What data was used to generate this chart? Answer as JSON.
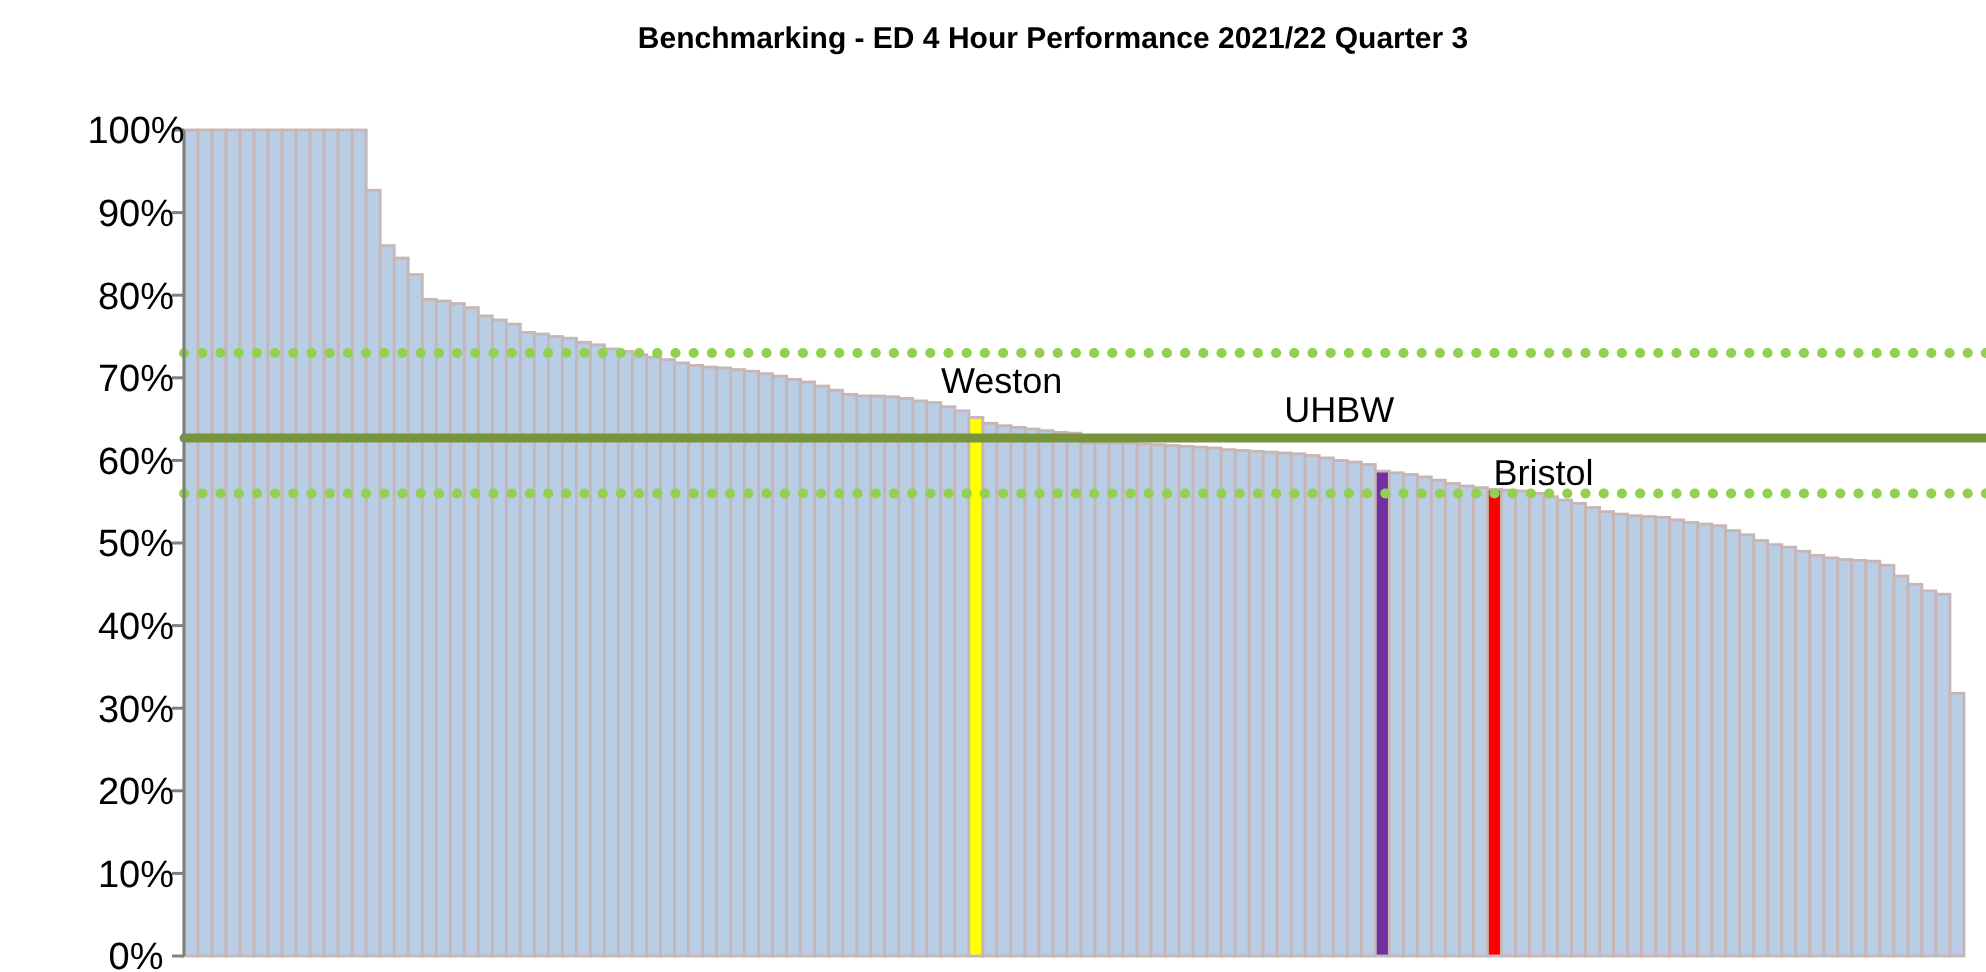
{
  "chart_data": {
    "type": "bar",
    "title": "Benchmarking - ED 4 Hour Performance 2021/22 Quarter 3",
    "categories": [
      null,
      null,
      null,
      null,
      null,
      null,
      null,
      null,
      null,
      null,
      null,
      null,
      null,
      null,
      null,
      null,
      null,
      null,
      null,
      null,
      null,
      null,
      null,
      null,
      null,
      null,
      null,
      null,
      null,
      null,
      null,
      null,
      null,
      null,
      null,
      null,
      null,
      null,
      null,
      null,
      null,
      null,
      null,
      null,
      null,
      null,
      null,
      null,
      null,
      null,
      null,
      null,
      null,
      null,
      null,
      null,
      null,
      null,
      null,
      null,
      null,
      null,
      null,
      null,
      null,
      null,
      null,
      null,
      null,
      null,
      null,
      null,
      null,
      null,
      null,
      null,
      null,
      null,
      null,
      null,
      null,
      null,
      null,
      null,
      null,
      null,
      null,
      null,
      null,
      null,
      null,
      null,
      null,
      null,
      null,
      null,
      null,
      null,
      null,
      null,
      null,
      null,
      null,
      null,
      null,
      null,
      null,
      null,
      null,
      null,
      null,
      null,
      null,
      null,
      null,
      null,
      null,
      null,
      null,
      null,
      null,
      null,
      null,
      null,
      null,
      null,
      null
    ],
    "values": [
      100,
      100,
      100,
      100,
      100,
      100,
      100,
      100,
      100,
      100,
      100,
      100,
      100,
      92.7,
      86,
      84.5,
      82.5,
      79.5,
      79.3,
      79,
      78.5,
      77.5,
      77,
      76.5,
      75.5,
      75.3,
      75,
      74.8,
      74.3,
      74,
      73.5,
      73.2,
      72.8,
      72.5,
      72.2,
      71.8,
      71.5,
      71.3,
      71.2,
      71,
      70.8,
      70.5,
      70.2,
      69.8,
      69.5,
      69,
      68.5,
      68,
      67.8,
      67.8,
      67.7,
      67.5,
      67.2,
      67,
      66.5,
      66,
      65.2,
      64.5,
      64.2,
      64,
      63.8,
      63.6,
      63.4,
      63.3,
      62.1,
      62.1,
      62.1,
      62.1,
      62,
      61.9,
      61.8,
      61.7,
      61.6,
      61.5,
      61.3,
      61.2,
      61.1,
      61,
      60.9,
      60.8,
      60.6,
      60.3,
      60,
      59.8,
      59.5,
      58.7,
      58.5,
      58.3,
      58,
      57.6,
      57.2,
      56.9,
      56.7,
      56.5,
      56.4,
      56.3,
      56,
      55.6,
      55.2,
      54.8,
      54.3,
      53.8,
      53.5,
      53.3,
      53.2,
      53.1,
      52.8,
      52.5,
      52.3,
      52.1,
      51.5,
      51,
      50.3,
      49.8,
      49.5,
      49,
      48.5,
      48.2,
      48,
      47.9,
      47.8,
      47.3,
      46,
      45,
      44.2,
      43.8,
      31.8
    ],
    "colors": [
      "#b9cde5",
      "#b9cde5",
      "#b9cde5",
      "#b9cde5",
      "#b9cde5",
      "#b9cde5",
      "#b9cde5",
      "#b9cde5",
      "#b9cde5",
      "#b9cde5",
      "#b9cde5",
      "#b9cde5",
      "#b9cde5",
      "#b9cde5",
      "#b9cde5",
      "#b9cde5",
      "#b9cde5",
      "#b9cde5",
      "#b9cde5",
      "#b9cde5",
      "#b9cde5",
      "#b9cde5",
      "#b9cde5",
      "#b9cde5",
      "#b9cde5",
      "#b9cde5",
      "#b9cde5",
      "#b9cde5",
      "#b9cde5",
      "#b9cde5",
      "#b9cde5",
      "#b9cde5",
      "#b9cde5",
      "#b9cde5",
      "#b9cde5",
      "#b9cde5",
      "#b9cde5",
      "#b9cde5",
      "#b9cde5",
      "#b9cde5",
      "#b9cde5",
      "#b9cde5",
      "#b9cde5",
      "#b9cde5",
      "#b9cde5",
      "#b9cde5",
      "#b9cde5",
      "#b9cde5",
      "#b9cde5",
      "#b9cde5",
      "#b9cde5",
      "#b9cde5",
      "#b9cde5",
      "#b9cde5",
      "#b9cde5",
      "#b9cde5",
      "#ffff00",
      "#b9cde5",
      "#b9cde5",
      "#b9cde5",
      "#b9cde5",
      "#b9cde5",
      "#b9cde5",
      "#b9cde5",
      "#b9cde5",
      "#b9cde5",
      "#b9cde5",
      "#b9cde5",
      "#b9cde5",
      "#b9cde5",
      "#b9cde5",
      "#b9cde5",
      "#b9cde5",
      "#b9cde5",
      "#b9cde5",
      "#b9cde5",
      "#b9cde5",
      "#b9cde5",
      "#b9cde5",
      "#b9cde5",
      "#b9cde5",
      "#b9cde5",
      "#b9cde5",
      "#b9cde5",
      "#b9cde5",
      "#7030a0",
      "#b9cde5",
      "#b9cde5",
      "#b9cde5",
      "#b9cde5",
      "#b9cde5",
      "#b9cde5",
      "#b9cde5",
      "#ff0000",
      "#b9cde5",
      "#b9cde5",
      "#b9cde5",
      "#b9cde5",
      "#b9cde5",
      "#b9cde5",
      "#b9cde5",
      "#b9cde5",
      "#b9cde5",
      "#b9cde5",
      "#b9cde5",
      "#b9cde5",
      "#b9cde5",
      "#b9cde5",
      "#b9cde5",
      "#b9cde5",
      "#b9cde5",
      "#b9cde5",
      "#b9cde5",
      "#b9cde5",
      "#b9cde5",
      "#b9cde5",
      "#b9cde5",
      "#b9cde5",
      "#b9cde5",
      "#b9cde5",
      "#b9cde5",
      "#b9cde5",
      "#b9cde5",
      "#b9cde5",
      "#b9cde5",
      "#b9cde5",
      "#b9cde5"
    ],
    "ylim": [
      0,
      100
    ],
    "yticks": [
      {
        "value": 0,
        "label": "0%"
      },
      {
        "value": 10,
        "label": "10%"
      },
      {
        "value": 20,
        "label": "20%"
      },
      {
        "value": 30,
        "label": "30%"
      },
      {
        "value": 40,
        "label": "40%"
      },
      {
        "value": 50,
        "label": "50%"
      },
      {
        "value": 60,
        "label": "60%"
      },
      {
        "value": 70,
        "label": "70%"
      },
      {
        "value": 80,
        "label": "80%"
      },
      {
        "value": 90,
        "label": "90%"
      },
      {
        "value": 100,
        "label": "100%"
      }
    ],
    "ref_lines": [
      {
        "axis": "y",
        "value": 73,
        "color": "#92d050",
        "line_style": "dotted"
      },
      {
        "axis": "y",
        "value": 62.7,
        "color": "#77933c",
        "line_style": "solid"
      },
      {
        "axis": "y",
        "value": 56,
        "color": "#92d050",
        "line_style": "dotted"
      }
    ],
    "annotations": [
      "Weston",
      "UHBW",
      "Bristol"
    ],
    "grid": false
  }
}
